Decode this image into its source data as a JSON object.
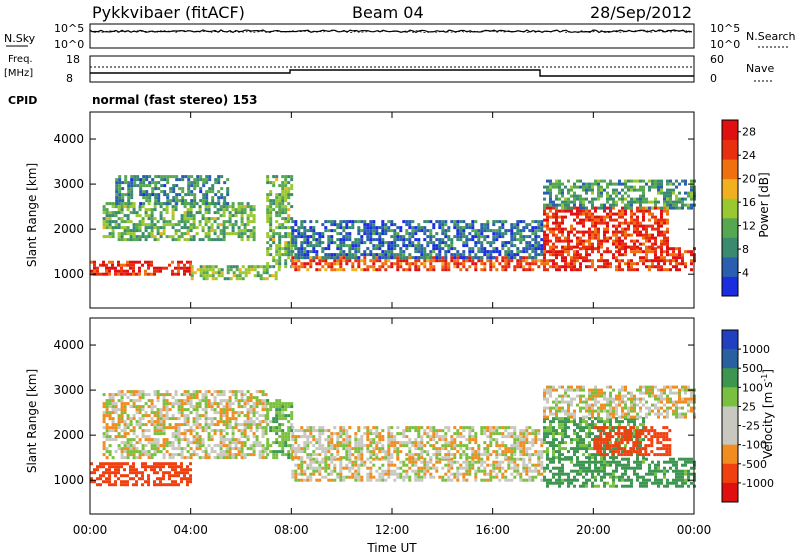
{
  "header": {
    "station": "Pykkvibaer (fitACF)",
    "beam": "Beam 04",
    "date": "28/Sep/2012"
  },
  "noise_panel": {
    "left_label": "N.Sky",
    "left_ticks": [
      "10^5",
      "10^0"
    ],
    "right_ticks": [
      "10^5",
      "10^0"
    ],
    "right_label": "N.Search"
  },
  "freq_panel": {
    "left_label_1": "Freq.",
    "left_label_2": "[MHz]",
    "left_ticks": [
      "18",
      "8"
    ],
    "right_ticks": [
      "60",
      "0"
    ],
    "right_label": "Nave",
    "cpid_label": "CPID",
    "mode_text": "normal (fast stereo) 153"
  },
  "colors": {
    "power": [
      "#1a2ee0",
      "#2a5fb0",
      "#3a8a70",
      "#56a850",
      "#9ac830",
      "#f0b020",
      "#f07010",
      "#e83010",
      "#e01010"
    ],
    "velocity": [
      "#e01010",
      "#f04010",
      "#f08c20",
      "#c0c0b8",
      "#7ac040",
      "#3c9650",
      "#2a60a0",
      "#2040c0"
    ],
    "velocity_gray": "#c8c8c0"
  },
  "chart_data": [
    {
      "type": "heatmap",
      "title": "",
      "ylabel": "Slant Range [km]",
      "xlabel": "",
      "ylim": [
        250,
        4600
      ],
      "yticks": [
        "1000",
        "2000",
        "3000",
        "4000"
      ],
      "colorbar": {
        "label": "Power [dB]",
        "ticks": [
          "4",
          "8",
          "12",
          "16",
          "20",
          "24",
          "28"
        ],
        "range": [
          0,
          30
        ]
      },
      "bands": [
        {
          "t0": 0.0,
          "t1": 4.0,
          "r0": 1000,
          "r1": 1300,
          "value": 26
        },
        {
          "t0": 4.0,
          "t1": 7.5,
          "r0": 900,
          "r1": 1200,
          "value": 14
        },
        {
          "t0": 0.5,
          "t1": 6.5,
          "r0": 1800,
          "r1": 2600,
          "value": 12
        },
        {
          "t0": 1.0,
          "t1": 5.5,
          "r0": 2600,
          "r1": 3200,
          "value": 8
        },
        {
          "t0": 7.0,
          "t1": 8.0,
          "r0": 1200,
          "r1": 3200,
          "value": 12
        },
        {
          "t0": 8.0,
          "t1": 18.0,
          "r0": 1100,
          "r1": 1400,
          "value": 24
        },
        {
          "t0": 8.0,
          "t1": 18.0,
          "r0": 1400,
          "r1": 2200,
          "value": 6
        },
        {
          "t0": 18.0,
          "t1": 24.0,
          "r0": 1100,
          "r1": 1600,
          "value": 26
        },
        {
          "t0": 18.0,
          "t1": 23.0,
          "r0": 1600,
          "r1": 2500,
          "value": 26
        },
        {
          "t0": 18.0,
          "t1": 24.0,
          "r0": 2500,
          "r1": 3100,
          "value": 10
        }
      ]
    },
    {
      "type": "heatmap",
      "title": "",
      "ylabel": "Slant Range [km]",
      "xlabel": "Time UT",
      "ylim": [
        250,
        4600
      ],
      "yticks": [
        "1000",
        "2000",
        "3000",
        "4000"
      ],
      "xticks": [
        "00:00",
        "04:00",
        "08:00",
        "12:00",
        "16:00",
        "20:00",
        "00:00"
      ],
      "xlim": [
        0,
        24
      ],
      "colorbar": {
        "label": "Velocity [m s",
        "label_sup": "-1",
        "label_tail": "]",
        "ticks": [
          "1000",
          "500",
          "100",
          "25",
          "-25",
          "-100",
          "-500",
          "-1000"
        ]
      },
      "bands": [
        {
          "t0": 0.0,
          "t1": 4.0,
          "r0": 900,
          "r1": 1400,
          "value": -300
        },
        {
          "t0": 0.5,
          "t1": 7.0,
          "r0": 1500,
          "r1": 3000,
          "value": 0
        },
        {
          "t0": 7.0,
          "t1": 8.0,
          "r0": 1500,
          "r1": 2800,
          "value": 80
        },
        {
          "t0": 8.0,
          "t1": 18.0,
          "r0": 1000,
          "r1": 1500,
          "value": 0
        },
        {
          "t0": 8.0,
          "t1": 18.0,
          "r0": 1500,
          "r1": 2200,
          "value": 0
        },
        {
          "t0": 18.0,
          "t1": 24.0,
          "r0": 900,
          "r1": 1500,
          "value": 150
        },
        {
          "t0": 18.0,
          "t1": 22.0,
          "r0": 1500,
          "r1": 2400,
          "value": 120
        },
        {
          "t0": 20.0,
          "t1": 23.0,
          "r0": 1600,
          "r1": 2200,
          "value": -200
        },
        {
          "t0": 18.0,
          "t1": 24.0,
          "r0": 2400,
          "r1": 3100,
          "value": 0
        }
      ]
    }
  ]
}
